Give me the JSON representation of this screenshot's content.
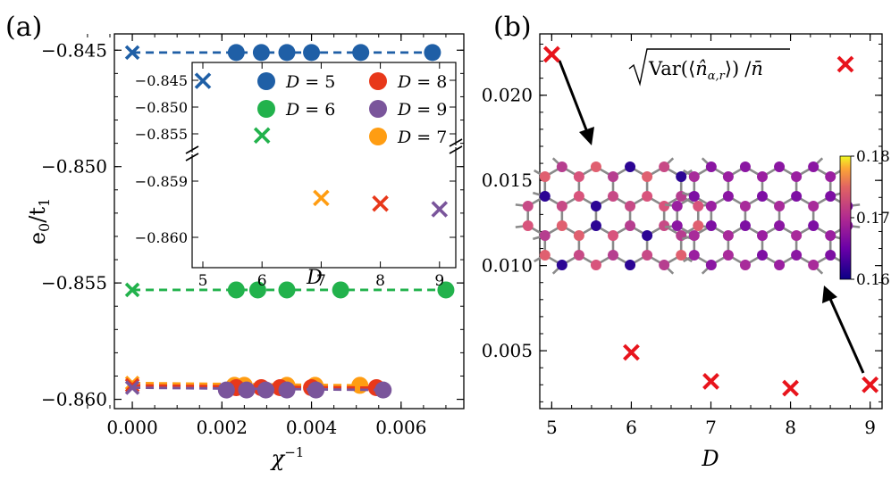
{
  "chart_data": [
    {
      "panel_label": "(a)",
      "type": "scatter",
      "xlabel": "χ⁻¹",
      "ylabel": "e₀/t₁",
      "xlim": [
        -0.0004,
        0.0074
      ],
      "ylim": [
        -0.8604,
        -0.8443
      ],
      "xticks": [
        "0.000",
        "0.002",
        "0.004",
        "0.006"
      ],
      "xtick_values": [
        0,
        0.002,
        0.004,
        0.006
      ],
      "yticks": [
        "−0.845",
        "−0.850",
        "−0.855",
        "−0.860"
      ],
      "ytick_values": [
        -0.845,
        -0.85,
        -0.855,
        -0.86
      ],
      "series": [
        {
          "name": "D = 5",
          "color": "#1f5fa6",
          "x": [
            0.00232,
            0.00288,
            0.00345,
            0.004,
            0.0051,
            0.0067
          ],
          "y": [
            -0.8451,
            -0.8451,
            -0.8451,
            -0.8451,
            -0.8451,
            -0.8451
          ],
          "extrapolated": -0.8451
        },
        {
          "name": "D = 6",
          "color": "#22b24c",
          "x": [
            0.00232,
            0.0028,
            0.00345,
            0.00465,
            0.007
          ],
          "y": [
            -0.8553,
            -0.8553,
            -0.8553,
            -0.8553,
            -0.8553
          ],
          "extrapolated": -0.8553
        },
        {
          "name": "D = 7",
          "color": "#ff9d12",
          "x": [
            0.00228,
            0.0025,
            0.00345,
            0.00408,
            0.00508
          ],
          "y": [
            -0.8594,
            -0.8594,
            -0.8594,
            -0.8594,
            -0.8594
          ],
          "extrapolated": -0.8593
        },
        {
          "name": "D = 8",
          "color": "#e8381a",
          "x": [
            0.00232,
            0.00288,
            0.0033,
            0.004,
            0.00545
          ],
          "y": [
            -0.8595,
            -0.8595,
            -0.8595,
            -0.8595,
            -0.8595
          ],
          "extrapolated": -0.8594
        },
        {
          "name": "D = 9",
          "color": "#7a559b",
          "x": [
            0.0021,
            0.00255,
            0.00298,
            0.00345,
            0.0041,
            0.0056
          ],
          "y": [
            -0.8596,
            -0.8596,
            -0.8596,
            -0.8596,
            -0.8596,
            -0.8596
          ],
          "extrapolated": -0.8595
        }
      ],
      "inset": {
        "xlabel": "D",
        "xticks": [
          "5",
          "6",
          "7",
          "8",
          "9"
        ],
        "yticks_upper": [
          "−0.845",
          "−0.850",
          "−0.855"
        ],
        "yticks_lower": [
          "−0.859",
          "−0.860"
        ],
        "points": [
          {
            "x": 5,
            "y": -0.8451,
            "color": "#1f5fa6"
          },
          {
            "x": 6,
            "y": -0.8553,
            "color": "#22b24c"
          },
          {
            "x": 7,
            "y": -0.8593,
            "color": "#ff9d12"
          },
          {
            "x": 8,
            "y": -0.8594,
            "color": "#e8381a"
          },
          {
            "x": 9,
            "y": -0.8595,
            "color": "#7a559b"
          }
        ]
      }
    },
    {
      "panel_label": "(b)",
      "type": "scatter",
      "xlabel": "D",
      "ylabel": "",
      "legend": "√Var(⟨n̂α,r⟩)/n̄",
      "xlim": [
        4.85,
        9.15
      ],
      "ylim": [
        0.0016,
        0.0236
      ],
      "xticks": [
        "5",
        "6",
        "7",
        "8",
        "9"
      ],
      "xtick_values": [
        5,
        6,
        7,
        8,
        9
      ],
      "yticks": [
        "0.005",
        "0.010",
        "0.015",
        "0.020"
      ],
      "ytick_values": [
        0.005,
        0.01,
        0.015,
        0.02
      ],
      "series": [
        {
          "name": "√Var(⟨n̂α,r⟩)/n̄",
          "color": "#e8141c",
          "x": [
            5,
            6,
            7,
            8,
            9
          ],
          "y": [
            0.0224,
            0.0049,
            0.0032,
            0.0028,
            0.003
          ]
        }
      ],
      "colorbar": {
        "min": 0.16,
        "max": 0.18,
        "ticks": [
          "0.18",
          "0.17",
          "0.16"
        ]
      }
    }
  ]
}
